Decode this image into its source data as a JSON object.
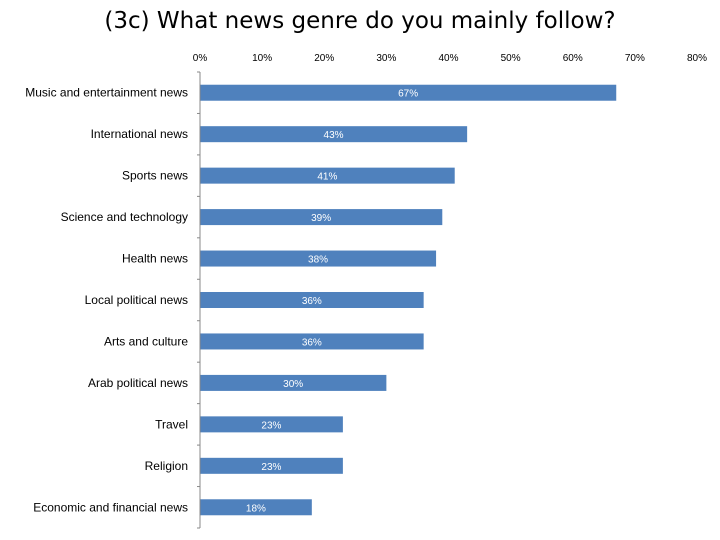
{
  "chart_data": {
    "type": "bar",
    "orientation": "horizontal",
    "title": "(3c) What news genre do you mainly follow?",
    "categories": [
      "Music and entertainment news",
      "International news",
      "Sports news",
      "Science and technology",
      "Health news",
      "Local political news",
      "Arts and culture",
      "Arab political news",
      "Travel",
      "Religion",
      "Economic and financial news"
    ],
    "values": [
      67,
      43,
      41,
      39,
      38,
      36,
      36,
      30,
      23,
      23,
      18
    ],
    "data_labels": [
      "67%",
      "43%",
      "41%",
      "39%",
      "38%",
      "36%",
      "36%",
      "30%",
      "23%",
      "23%",
      "18%"
    ],
    "xlim": [
      0,
      80
    ],
    "x_ticks": [
      0,
      10,
      20,
      30,
      40,
      50,
      60,
      70,
      80
    ],
    "x_tick_labels": [
      "0%",
      "10%",
      "20%",
      "30%",
      "40%",
      "50%",
      "60%",
      "70%",
      "80%"
    ],
    "x_axis_position": "top",
    "grid": false,
    "legend": "none",
    "bar_color": "#4f81bd"
  }
}
